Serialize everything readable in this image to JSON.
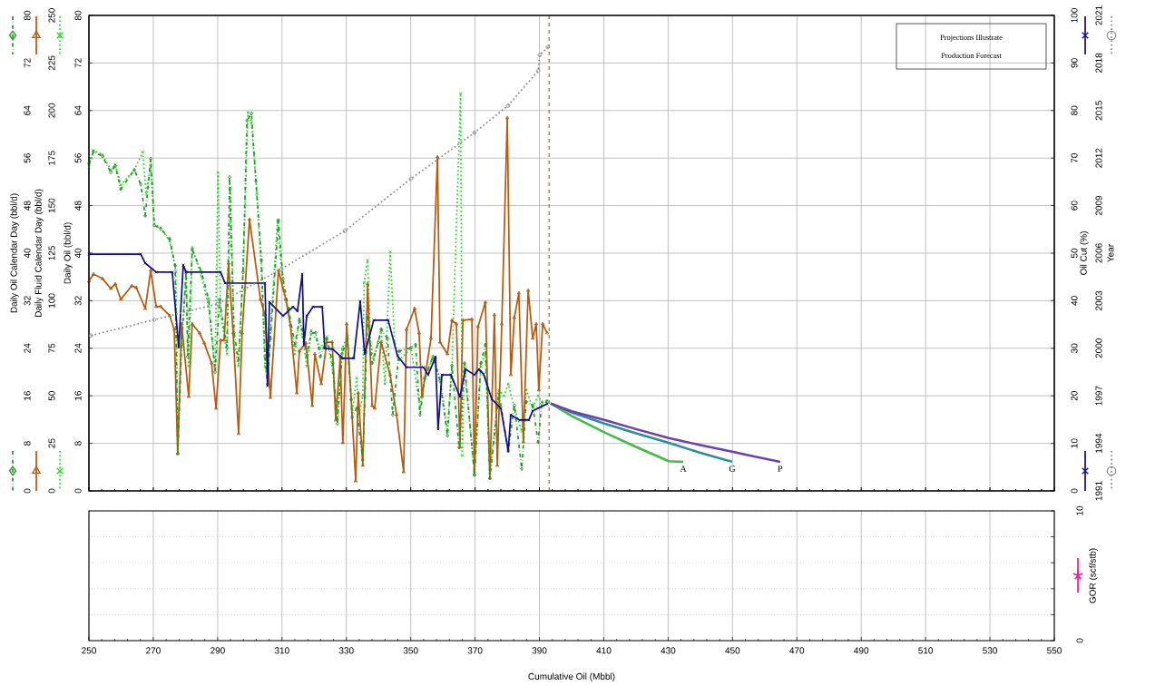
{
  "chart_data": [
    {
      "type": "line",
      "tick_labels": "y",
      "xlim": [
        250,
        550
      ],
      "xticks": [
        250,
        270,
        290,
        310,
        330,
        350,
        370,
        390,
        410,
        430,
        450,
        470,
        490,
        510,
        530,
        550
      ],
      "ylim": [
        0,
        80
      ],
      "yticks": [
        0,
        8,
        16,
        24,
        32,
        40,
        48,
        56,
        64,
        72,
        80
      ],
      "ylabel": "Daily Oil (bbl/d)",
      "y2lim": [
        0,
        250
      ],
      "y2ticks": [
        0,
        25,
        50,
        75,
        100,
        125,
        150,
        175,
        200,
        225,
        250
      ],
      "y2label": "Daily Fluid Calendar Day (bbl/d)",
      "y3lim": [
        0,
        80
      ],
      "y3ticks": [
        0,
        8,
        16,
        24,
        32,
        40,
        48,
        56,
        64,
        72,
        80
      ],
      "y3label": "Daily Oil Calendar Day (bbl/d)",
      "grid": true,
      "ref_lines": [
        {
          "axis": "x",
          "value": 393,
          "color": "#8b5a2b",
          "line_style": "dashed"
        }
      ],
      "annotations": [
        "Projections Illustrate Production Forecast"
      ],
      "series": [
        {
          "axis": "y2",
          "color": "#b85a0d",
          "line_style": "solid",
          "marker": "triangle",
          "x": [
            250.0,
            251.4,
            254.2,
            256.8,
            258.2,
            259.9,
            263.3,
            264.7,
            267.5,
            269.2,
            270.9,
            272.3,
            275.1,
            276.5,
            277.6,
            278.8,
            281.0,
            282.1,
            284.4,
            285.8,
            288.1,
            289.5,
            290.9,
            292.0,
            293.4,
            294.8,
            296.5,
            297.6,
            299.9,
            303.3,
            304.7,
            306.4,
            308.9,
            311.2,
            312.6,
            314.6,
            315.4,
            317.4,
            319.4,
            320.2,
            322.2,
            323.9,
            325.6,
            326.7,
            328.1,
            328.9,
            330.1,
            331.5,
            332.9,
            333.7,
            335.1,
            336.6,
            338.0,
            338.8,
            340.8,
            343.6,
            345.6,
            347.8,
            348.7,
            351.2,
            352.6,
            353.5,
            356.3,
            358.3,
            359.1,
            361.4,
            362.8,
            364.2,
            365.3,
            366.2,
            369.0,
            369.8,
            370.9,
            373.2,
            374.6,
            376.0,
            376.9,
            378.3,
            380.0,
            381.1,
            382.2,
            383.6,
            385.0,
            386.5,
            387.9,
            389.0,
            389.8,
            391.0,
            392.4
          ],
          "values": [
            110.2,
            114.0,
            111.6,
            106.4,
            108.8,
            100.7,
            107.8,
            106.9,
            95.9,
            115.9,
            96.9,
            96.9,
            92.1,
            84.9,
            19.6,
            87.8,
            49.6,
            87.8,
            83.0,
            77.8,
            67.3,
            43.4,
            79.2,
            79.2,
            119.7,
            83.0,
            30.1,
            83.0,
            142.7,
            100.7,
            92.6,
            49.1,
            115.9,
            100.7,
            87.3,
            51.5,
            73.5,
            77.8,
            44.8,
            72.0,
            56.3,
            78.2,
            78.2,
            37.2,
            70.6,
            25.3,
            87.8,
            48.2,
            5.2,
            51.5,
            13.4,
            108.8,
            44.8,
            43.4,
            78.2,
            61.1,
            40.1,
            10.0,
            84.9,
            95.9,
            83.0,
            49.6,
            80.2,
            175.6,
            78.2,
            72.0,
            89.7,
            87.8,
            22.9,
            89.7,
            90.2,
            8.6,
            86.4,
            99.2,
            6.7,
            92.6,
            13.4,
            87.8,
            196.1,
            61.1,
            91.1,
            104.0,
            25.8,
            105.4,
            80.2,
            87.8,
            53.0,
            87.8,
            83.0
          ]
        },
        {
          "axis": "y3",
          "color": "#229922",
          "line_style": "dashdot",
          "marker": "diamond",
          "x": [
            250.0,
            251.4,
            254.2,
            256.8,
            258.2,
            259.9,
            264.1,
            266.1,
            267.5,
            269.2,
            270.3,
            272.3,
            275.1,
            276.8,
            277.6,
            278.8,
            280.2,
            280.7,
            282.1,
            285.0,
            287.2,
            289.2,
            290.6,
            292.9,
            293.7,
            295.1,
            296.5,
            297.9,
            299.1,
            300.5,
            301.9,
            303.6,
            304.7,
            305.5,
            306.4,
            308.9,
            310.3,
            312.0,
            314.0,
            315.4,
            316.3,
            317.7,
            319.1,
            320.5,
            321.9,
            323.9,
            325.8,
            327.2,
            328.7,
            330.3,
            331.8,
            333.2,
            335.1,
            336.6,
            338.0,
            339.9,
            340.8,
            342.8,
            344.4,
            346.4,
            350.1,
            351.5,
            352.9,
            354.3,
            356.9,
            359.1,
            361.4,
            362.8,
            365.0,
            366.7,
            369.8,
            371.8,
            373.2,
            374.6,
            377.4,
            380.3,
            382.2,
            384.5,
            385.9,
            387.9,
            389.6,
            390.7,
            392.4
          ],
          "values": [
            55.1,
            57.1,
            56.3,
            53.6,
            54.7,
            50.8,
            54.0,
            51.6,
            46.3,
            55.9,
            44.7,
            44.1,
            42.4,
            37.9,
            6.3,
            24.6,
            36.8,
            22.6,
            40.6,
            36.8,
            32.2,
            20.0,
            32.2,
            24.1,
            52.8,
            26.6,
            22.0,
            36.8,
            62.3,
            63.5,
            52.1,
            38.8,
            22.6,
            18.0,
            25.6,
            45.5,
            35.7,
            30.7,
            24.6,
            28.7,
            27.2,
            22.6,
            26.6,
            26.6,
            22.6,
            25.6,
            21.5,
            11.3,
            23.1,
            25.6,
            12.4,
            13.9,
            5.2,
            29.2,
            21.5,
            25.0,
            27.2,
            25.6,
            12.8,
            23.5,
            24.1,
            24.6,
            12.8,
            18.9,
            22.6,
            18.5,
            9.3,
            21.1,
            7.3,
            21.5,
            2.7,
            21.5,
            24.6,
            2.1,
            16.5,
            6.7,
            14.4,
            3.7,
            15.0,
            14.4,
            8.2,
            14.7,
            15.0
          ]
        },
        {
          "color": "#22dd22",
          "line_style": "dotted",
          "marker": "cross",
          "x": [
            250.0,
            251.4,
            254.2,
            256.8,
            258.2,
            259.9,
            264.1,
            266.7,
            267.8,
            269.2,
            270.3,
            272.3,
            275.1,
            277.0,
            277.6,
            278.8,
            280.2,
            281.0,
            282.1,
            285.0,
            287.2,
            289.2,
            290.1,
            290.9,
            292.9,
            294.0,
            295.1,
            296.5,
            297.9,
            299.4,
            300.5,
            302.2,
            303.6,
            304.7,
            305.5,
            306.4,
            308.6,
            310.3,
            312.0,
            314.0,
            315.4,
            316.3,
            317.7,
            319.1,
            321.9,
            323.9,
            325.8,
            327.2,
            328.7,
            330.3,
            331.8,
            333.2,
            334.0,
            335.1,
            335.5,
            336.6,
            337.5,
            338.5,
            340.8,
            342.0,
            343.6,
            345.0,
            346.4,
            350.1,
            352.9,
            354.3,
            356.9,
            359.1,
            361.4,
            362.8,
            365.5,
            366.0,
            366.7,
            369.8,
            371.8,
            373.2,
            374.6,
            377.4,
            379.0,
            380.3,
            382.2,
            384.5,
            385.9,
            387.9,
            389.6,
            390.7,
            392.4
          ],
          "values": [
            54.5,
            57.3,
            56.6,
            54.0,
            54.9,
            51.5,
            54.0,
            57.0,
            50.0,
            54.7,
            44.9,
            44.3,
            42.0,
            37.0,
            7.0,
            26.0,
            36.0,
            21.0,
            41.0,
            36.0,
            31.0,
            20.5,
            53.6,
            30.0,
            23.0,
            51.0,
            25.0,
            21.0,
            37.0,
            63.7,
            62.0,
            50.0,
            37.0,
            21.0,
            19.0,
            27.0,
            45.5,
            34.0,
            30.0,
            23.0,
            29.0,
            26.0,
            21.0,
            27.0,
            24.0,
            26.0,
            20.0,
            12.0,
            24.0,
            26.0,
            13.0,
            19.0,
            13.0,
            16.0,
            35.0,
            38.8,
            25.0,
            22.0,
            27.0,
            18.0,
            40.2,
            25.0,
            22.0,
            24.0,
            14.0,
            19.0,
            22.5,
            19.0,
            10.0,
            21.0,
            66.9,
            6.0,
            21.0,
            3.0,
            21.0,
            23.0,
            3.0,
            17.0,
            16.0,
            18.0,
            14.0,
            10.0,
            17.0,
            14.0,
            16.0,
            15.0,
            15.2
          ]
        },
        {
          "name": "A",
          "color": "#44bb44",
          "line_style": "solid",
          "x": [
            393.5,
            400,
            410.4,
            420,
            430.2,
            434.7
          ],
          "values": [
            14.7,
            12.6,
            9.8,
            7.4,
            5.0,
            4.9
          ]
        },
        {
          "name": "G",
          "color": "#2a8f9a",
          "line_style": "solid",
          "x": [
            393.5,
            400,
            410.4,
            420,
            430.2,
            440,
            449.9
          ],
          "values": [
            14.7,
            13.2,
            11.3,
            9.7,
            8.1,
            6.4,
            4.9
          ]
        },
        {
          "name": "P",
          "color": "#6b3fb5",
          "line_style": "solid",
          "x": [
            393.5,
            400,
            410.4,
            420,
            430.2,
            440,
            449.9,
            455,
            464.8
          ],
          "values": [
            14.7,
            13.4,
            11.9,
            10.4,
            8.9,
            7.7,
            6.6,
            6.0,
            4.9
          ]
        }
      ]
    },
    {
      "type": "line",
      "tick_labels": "y",
      "xlim": [
        250,
        550
      ],
      "xticks": [
        250,
        270,
        290,
        310,
        330,
        350,
        370,
        390,
        410,
        430,
        450,
        470,
        490,
        510,
        530,
        550
      ],
      "ylim": [
        0,
        100
      ],
      "yticks": [
        0,
        10,
        20,
        30,
        40,
        50,
        60,
        70,
        80,
        90,
        100
      ],
      "ylabel": "Oil Cut (%)",
      "y2lim": [
        1991,
        2021
      ],
      "y2ticks": [
        1991,
        1994,
        1997,
        2000,
        2003,
        2006,
        2009,
        2012,
        2015,
        2018,
        2021
      ],
      "y2label": "Year",
      "series": [
        {
          "color": "#10108a",
          "line_style": "solid",
          "marker": "cross",
          "x": [
            250.0,
            266.1,
            267.5,
            270.9,
            275.9,
            277.9,
            279.3,
            280.2,
            290.9,
            292.3,
            304.7,
            305.5,
            306.1,
            310.3,
            313.4,
            314.8,
            316.3,
            316.8,
            317.7,
            319.6,
            322.5,
            323.3,
            325.8,
            328.9,
            332.3,
            334.3,
            335.7,
            338.5,
            343.0,
            345.9,
            348.7,
            354.0,
            355.4,
            357.7,
            358.5,
            359.7,
            362.5,
            365.3,
            367.0,
            369.8,
            371.2,
            372.6,
            375.2,
            378.0,
            380.3,
            381.1,
            383.9,
            386.7,
            387.9,
            389.6,
            392.4
          ],
          "values": [
            49.8,
            49.8,
            47.9,
            46.0,
            46.0,
            30.2,
            47.5,
            46.0,
            46.0,
            43.7,
            43.7,
            22.1,
            39.7,
            36.8,
            38.7,
            37.8,
            45.6,
            30.7,
            36.8,
            38.7,
            38.7,
            30.0,
            29.8,
            27.9,
            27.9,
            39.9,
            28.8,
            35.9,
            35.9,
            28.4,
            26.0,
            26.0,
            24.4,
            28.2,
            13.0,
            24.4,
            24.4,
            19.8,
            25.6,
            24.4,
            25.6,
            24.6,
            19.3,
            17.4,
            8.4,
            16.0,
            14.9,
            14.9,
            16.8,
            17.4,
            18.3
          ]
        },
        {
          "axis": "y2",
          "color": "#8c8c8c",
          "line_style": "dotted",
          "marker": "circle",
          "x": [
            250.6,
            270.3,
            290.0,
            309.8,
            329.5,
            350.1,
            369.8,
            380.2,
            389.6,
            390.1,
            392.6
          ],
          "values": [
            2000.8,
            2001.8,
            2002.8,
            2005.0,
            2007.4,
            2010.7,
            2013.6,
            2015.3,
            2017.5,
            2018.5,
            2019.0
          ]
        }
      ]
    },
    {
      "type": "line",
      "xlim": [
        250,
        550
      ],
      "xticks": [
        250,
        270,
        290,
        310,
        330,
        350,
        370,
        390,
        410,
        430,
        450,
        470,
        490,
        510,
        530,
        550
      ],
      "xlabel": "Cumulative Oil (Mbbl)",
      "ylim": [
        0,
        10
      ],
      "yticks": [
        0,
        {
          "value": 2,
          "label": null
        },
        {
          "value": 4,
          "label": null
        },
        {
          "value": 6,
          "label": null
        },
        {
          "value": 8,
          "label": null
        },
        10
      ],
      "ylabel": "GOR (scf/stb)",
      "grid": true
    }
  ]
}
